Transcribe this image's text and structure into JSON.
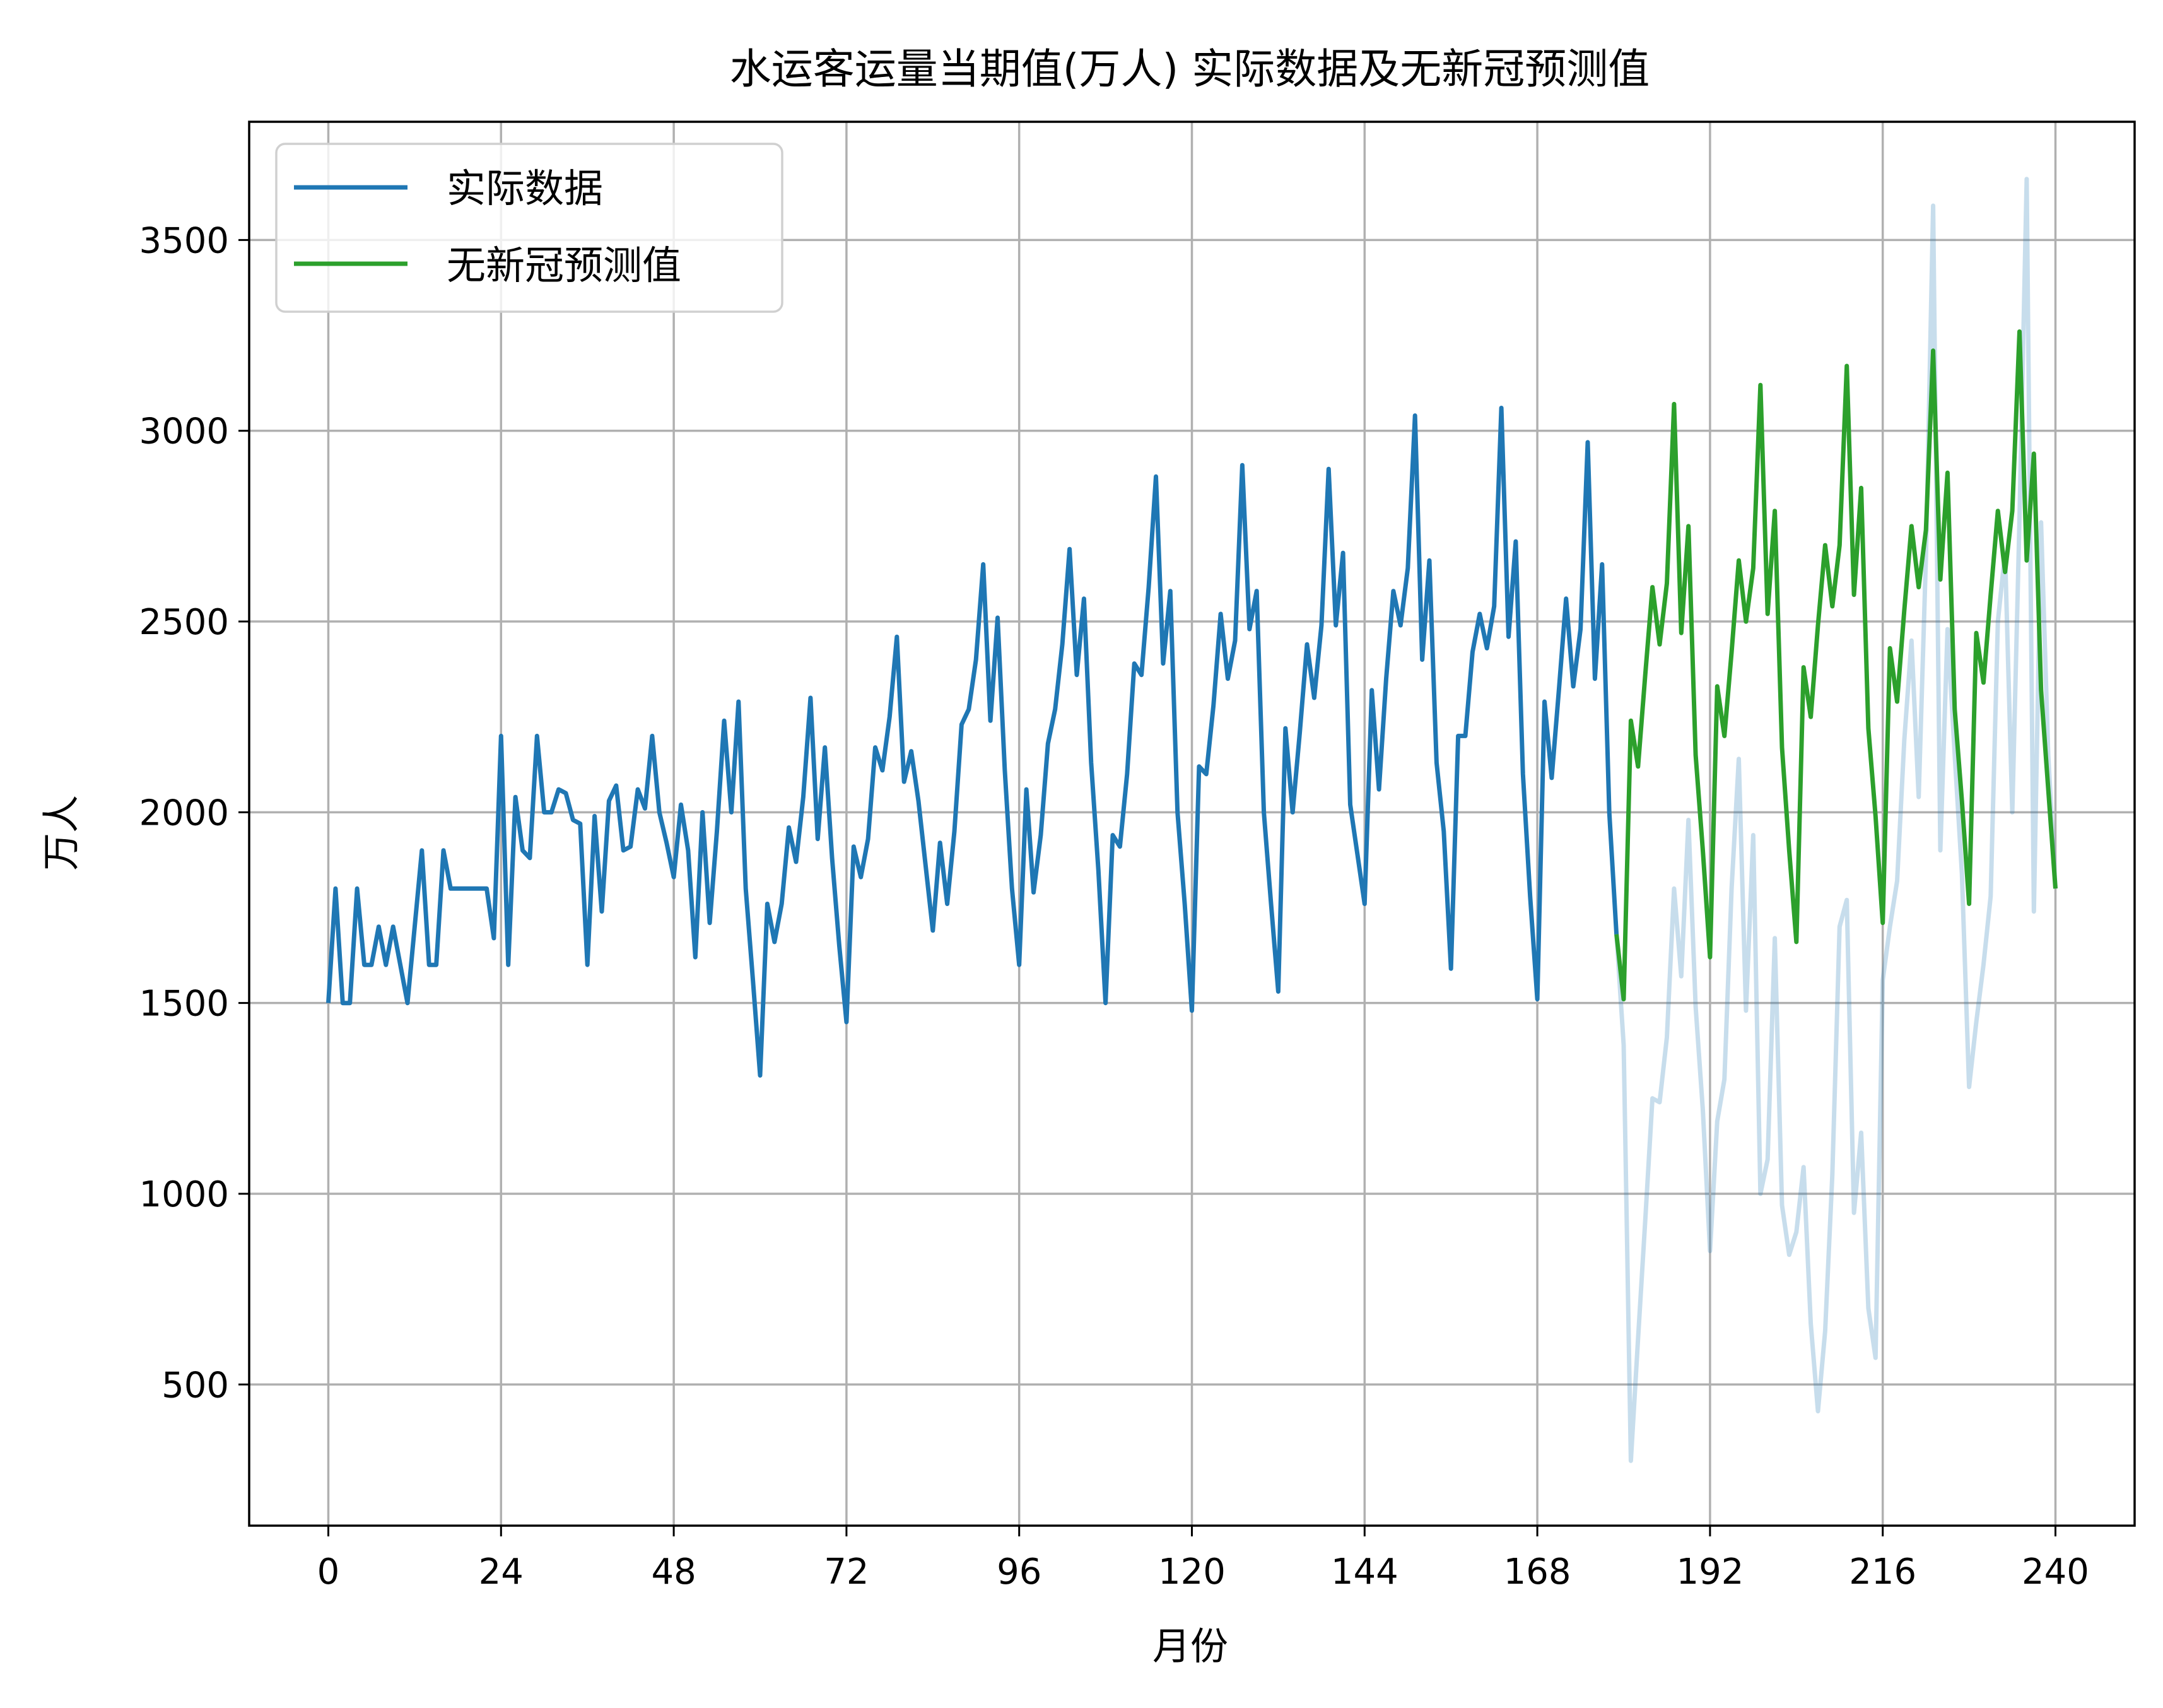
{
  "chart_data": {
    "type": "line",
    "title": "水运客运量当期值(万人) 实际数据及无新冠预测值",
    "xlabel": "月份",
    "ylabel": "万人",
    "xlim": [
      -11,
      251
    ],
    "ylim": [
      130,
      3810
    ],
    "grid": true,
    "legend_position": "upper left",
    "xticks": [
      0,
      24,
      48,
      72,
      96,
      120,
      144,
      168,
      192,
      216,
      240
    ],
    "yticks": [
      500,
      1000,
      1500,
      2000,
      2500,
      3000,
      3500
    ],
    "legend": [
      {
        "label": "实际数据",
        "color": "#1f77b4"
      },
      {
        "label": "无新冠预测值",
        "color": "#2ca02c"
      }
    ],
    "series": [
      {
        "name": "实际数据",
        "color": "#1f77b4",
        "x_start": 0,
        "values": [
          1500,
          1800,
          1500,
          1500,
          1800,
          1600,
          1600,
          1700,
          1600,
          1700,
          1600,
          1500,
          1700,
          1900,
          1600,
          1600,
          1900,
          1800,
          1800,
          1800,
          1800,
          1800,
          1800,
          1670,
          2200,
          1600,
          2040,
          1900,
          1880,
          2200,
          2000,
          2000,
          2060,
          2050,
          1980,
          1970,
          1600,
          1990,
          1740,
          2030,
          2070,
          1900,
          1910,
          2060,
          2010,
          2200,
          2000,
          1920,
          1830,
          2020,
          1900,
          1620,
          2000,
          1710,
          1950,
          2240,
          2000,
          2290,
          1800,
          1560,
          1310,
          1760,
          1660,
          1760,
          1960,
          1870,
          2040,
          2300,
          1930,
          2170,
          1880,
          1650,
          1450,
          1910,
          1830,
          1930,
          2170,
          2110,
          2250,
          2460,
          2080,
          2160,
          2030,
          1860,
          1690,
          1920,
          1760,
          1950,
          2230,
          2270,
          2400,
          2650,
          2240,
          2510,
          2110,
          1800,
          1600,
          2060,
          1790,
          1940,
          2180,
          2270,
          2440,
          2690,
          2360,
          2560,
          2130,
          1850,
          1500,
          1940,
          1910,
          2100,
          2390,
          2360,
          2590,
          2880,
          2390,
          2580,
          2000,
          1760,
          1480,
          2120,
          2100,
          2280,
          2520,
          2350,
          2450,
          2910,
          2480,
          2580,
          2000,
          1760,
          1530,
          2220,
          2000,
          2210,
          2440,
          2300,
          2490,
          2900,
          2490,
          2680,
          2020,
          1890,
          1760,
          2320,
          2060,
          2350,
          2580,
          2490,
          2640,
          3040,
          2400,
          2660,
          2130,
          1950,
          1590,
          2200,
          2200,
          2420,
          2520,
          2430,
          2540,
          3060,
          2460,
          2710,
          2100,
          1780,
          1510,
          2290,
          2090,
          2320,
          2560,
          2330,
          2480,
          2970,
          2350,
          2650,
          2000,
          1680
        ],
        "opacity": 1
      },
      {
        "name": "无新冠预测值",
        "color": "#2ca02c",
        "x_start": 179,
        "values": [
          1680,
          1510,
          2240,
          2120,
          2360,
          2590,
          2440,
          2600,
          3070,
          2470,
          2750,
          2150,
          1900,
          1620,
          2330,
          2200,
          2420,
          2660,
          2500,
          2640,
          3120,
          2520,
          2790,
          2170,
          1900,
          1660,
          2380,
          2250,
          2490,
          2700,
          2540,
          2700,
          3170,
          2570,
          2850,
          2220,
          1990,
          1710,
          2430,
          2290,
          2530,
          2750,
          2590,
          2740,
          3210,
          2610,
          2890,
          2270,
          2030,
          1760,
          2470,
          2340,
          2570,
          2790,
          2630,
          2790,
          3260,
          2660,
          2940,
          2320,
          2060,
          1800
        ],
        "opacity": 1
      },
      {
        "name": "实际数据(新冠期间)",
        "color": "#1f77b4",
        "x_start": 179,
        "values": [
          1680,
          1390,
          300,
          620,
          930,
          1250,
          1240,
          1410,
          1800,
          1570,
          1980,
          1490,
          1220,
          850,
          1190,
          1300,
          1800,
          2140,
          1480,
          1940,
          1000,
          1090,
          1670,
          970,
          840,
          900,
          1070,
          660,
          430,
          640,
          1050,
          1700,
          1770,
          950,
          1160,
          700,
          570,
          1560,
          1700,
          1820,
          2190,
          2450,
          2040,
          2670,
          3590,
          1900,
          2480,
          2150,
          1840,
          1280,
          1450,
          1600,
          1780,
          2500,
          2680,
          2000,
          2770,
          3660,
          1740,
          2760,
          2150,
          1800
        ],
        "opacity": 0.25
      }
    ]
  }
}
